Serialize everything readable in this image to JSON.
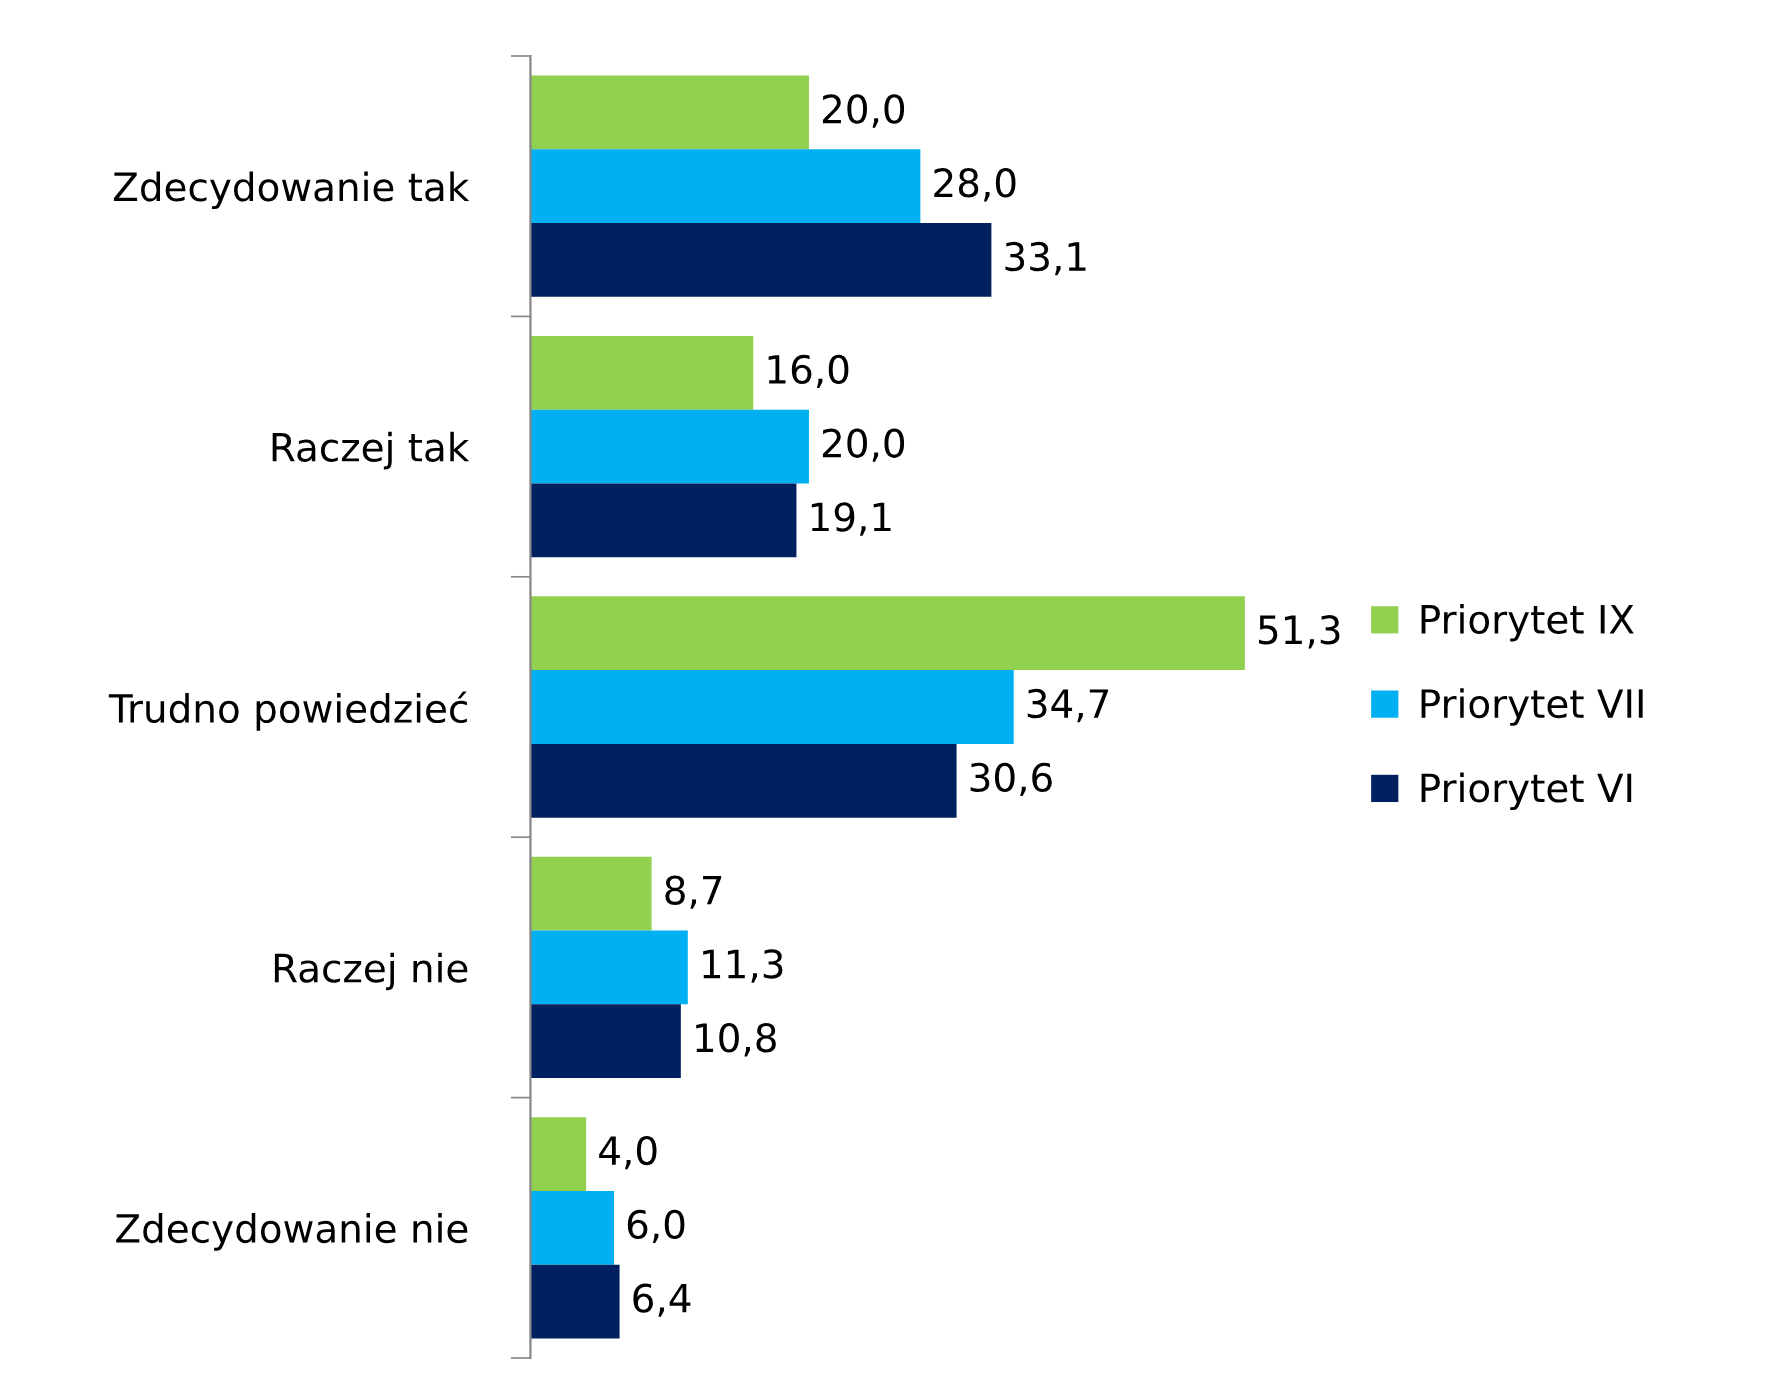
{
  "chart_data": {
    "type": "bar",
    "orientation": "horizontal",
    "categories": [
      "Zdecydowanie tak",
      "Raczej tak",
      "Trudno powiedzieć",
      "Raczej nie",
      "Zdecydowanie nie"
    ],
    "series": [
      {
        "name": "Priorytet IX",
        "color": "#92d050",
        "values": [
          20.0,
          16.0,
          51.3,
          8.7,
          4.0
        ],
        "value_labels": [
          "20,0",
          "16,0",
          "51,3",
          "8,7",
          "4,0"
        ]
      },
      {
        "name": "Priorytet VII",
        "color": "#00b0f0",
        "values": [
          28.0,
          20.0,
          34.7,
          11.3,
          6.0
        ],
        "value_labels": [
          "28,0",
          "20,0",
          "34,7",
          "11,3",
          "6,0"
        ]
      },
      {
        "name": "Priorytet VI",
        "color": "#002060",
        "values": [
          33.1,
          19.1,
          30.6,
          10.8,
          6.4
        ],
        "value_labels": [
          "33,1",
          "19,1",
          "30,6",
          "10,8",
          "6,4"
        ]
      }
    ],
    "tick_labels": "y",
    "legend": "right",
    "grid": false
  }
}
